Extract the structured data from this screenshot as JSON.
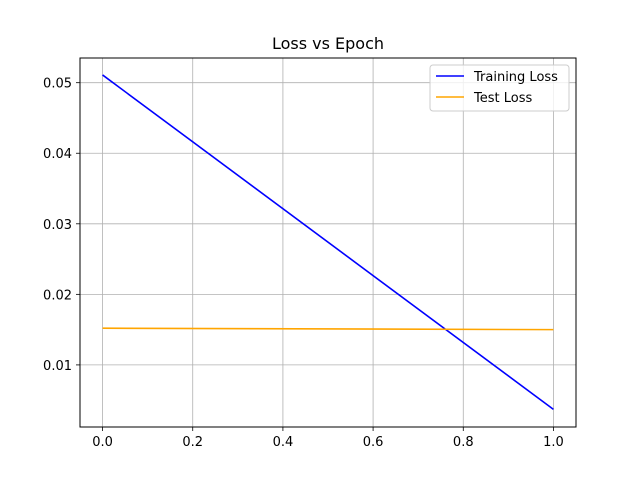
{
  "chart_data": {
    "type": "line",
    "title": "Loss vs Epoch",
    "xlabel": "",
    "ylabel": "",
    "xlim": [
      -0.05,
      1.05
    ],
    "ylim": [
      0.0012,
      0.0535
    ],
    "x_ticks": [
      0.0,
      0.2,
      0.4,
      0.6,
      0.8,
      1.0
    ],
    "x_tick_labels": [
      "0.0",
      "0.2",
      "0.4",
      "0.6",
      "0.8",
      "1.0"
    ],
    "y_ticks": [
      0.01,
      0.02,
      0.03,
      0.04,
      0.05
    ],
    "y_tick_labels": [
      "0.01",
      "0.02",
      "0.03",
      "0.04",
      "0.05"
    ],
    "grid": true,
    "legend_position": "top-right",
    "series": [
      {
        "name": "Training Loss",
        "color": "#0000ff",
        "x": [
          0.0,
          1.0
        ],
        "y": [
          0.0511,
          0.0037
        ]
      },
      {
        "name": "Test Loss",
        "color": "#ffa500",
        "x": [
          0.0,
          1.0
        ],
        "y": [
          0.0152,
          0.015
        ]
      }
    ]
  }
}
